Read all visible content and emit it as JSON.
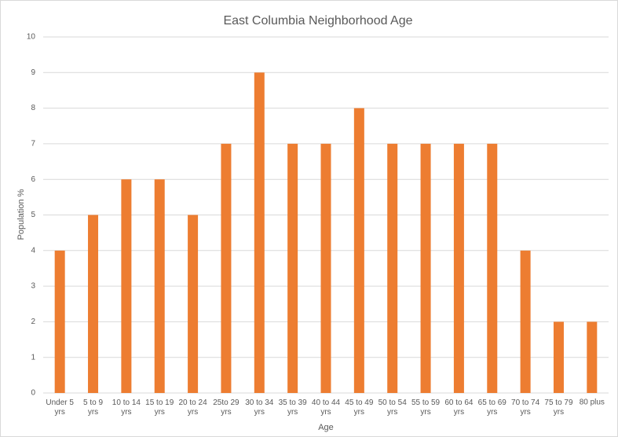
{
  "chart_data": {
    "type": "bar",
    "title": "East Columbia Neighborhood Age",
    "x_label": "Age",
    "y_label": "Population %",
    "categories": [
      "Under 5 yrs",
      "5 to 9 yrs",
      "10 to 14 yrs",
      "15 to 19 yrs",
      "20 to 24 yrs",
      "25to 29 yrs",
      "30 to 34 yrs",
      "35 to 39 yrs",
      "40 to 44 yrs",
      "45 to 49 yrs",
      "50 to 54 yrs",
      "55 to 59 yrs",
      "60 to 64 yrs",
      "65 to 69 yrs",
      "70 to 74 yrs",
      "75 to 79 yrs",
      "80 plus"
    ],
    "values": [
      4,
      5,
      6,
      6,
      5,
      7,
      9,
      7,
      7,
      8,
      7,
      7,
      7,
      7,
      4,
      2,
      2
    ],
    "color": "#ed7d31",
    "ylim": [
      0,
      10
    ],
    "yticks": [
      0,
      1,
      2,
      3,
      4,
      5,
      6,
      7,
      8,
      9,
      10
    ],
    "grid": true
  }
}
